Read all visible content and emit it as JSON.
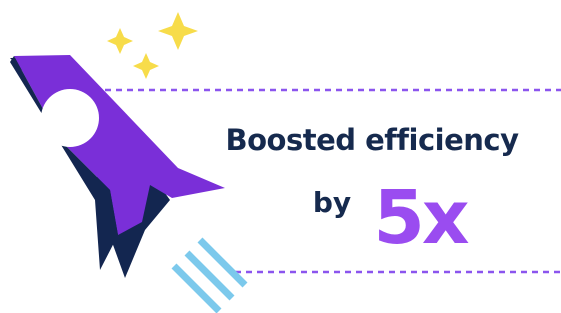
{
  "headline": "Boosted efficiency",
  "prefix": "by",
  "highlight": "5x"
}
